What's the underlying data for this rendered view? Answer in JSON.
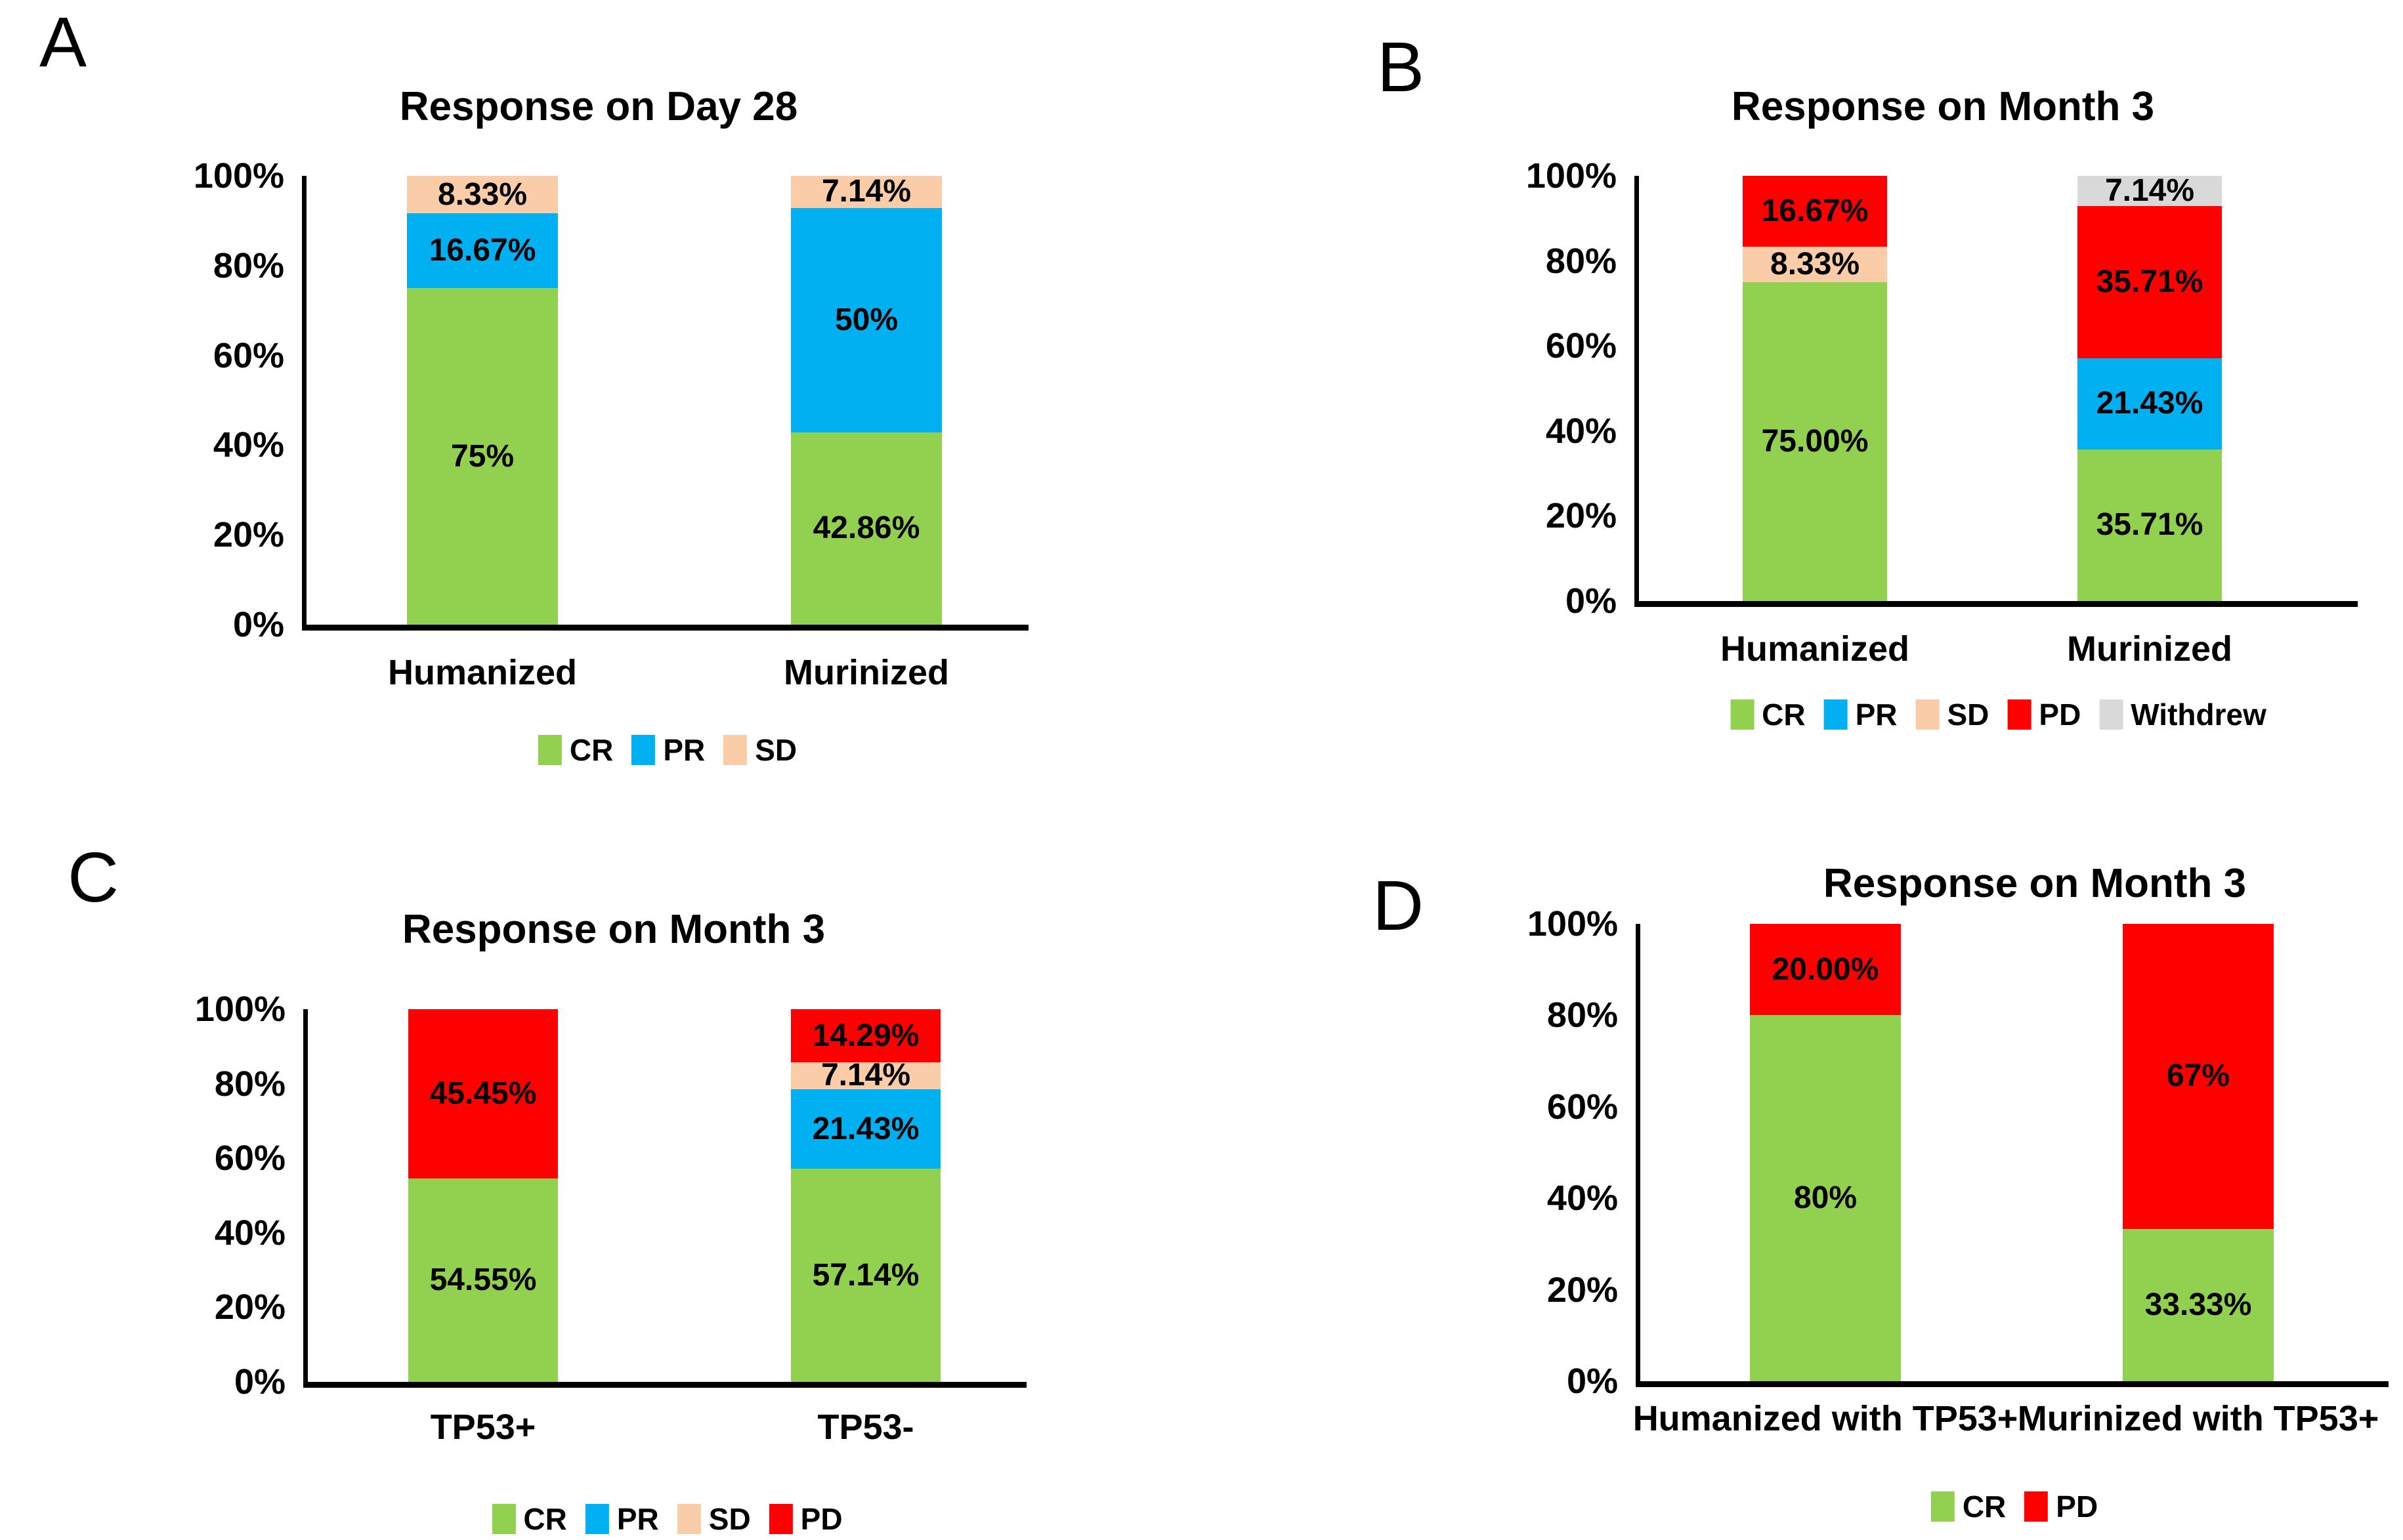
{
  "figure": {
    "background": "#FFFFFF",
    "text_color": "#000000",
    "axis_color": "#000000"
  },
  "colors": {
    "CR": "#92D050",
    "PR": "#00B0F0",
    "SD": "#FACDA8",
    "PD": "#FF0000",
    "Withdrew": "#D9D9D9"
  },
  "chart_data": [
    {
      "panel_label": "A",
      "type": "bar",
      "stacked": true,
      "title": "Response on Day 28",
      "categories": [
        "Humanized",
        "Murinized"
      ],
      "series": [
        {
          "name": "CR",
          "color": "#92D050",
          "values": [
            75,
            42.86
          ],
          "labels": [
            "75%",
            "42.86%"
          ]
        },
        {
          "name": "PR",
          "color": "#00B0F0",
          "values": [
            16.67,
            50
          ],
          "labels": [
            "16.67%",
            "50%"
          ]
        },
        {
          "name": "SD",
          "color": "#FACDA8",
          "values": [
            8.33,
            7.14
          ],
          "labels": [
            "8.33%",
            "7.14%"
          ]
        }
      ],
      "ylim": [
        0,
        100
      ],
      "yticks": [
        "100%",
        "80%",
        "60%",
        "40%",
        "20%",
        "0%"
      ],
      "grid": false,
      "legend": [
        "CR",
        "PR",
        "SD"
      ],
      "legend_position": "bottom"
    },
    {
      "panel_label": "B",
      "type": "bar",
      "stacked": true,
      "title": "Response on Month 3",
      "categories": [
        "Humanized",
        "Murinized"
      ],
      "series": [
        {
          "name": "CR",
          "color": "#92D050",
          "values": [
            75,
            35.71
          ],
          "labels": [
            "75.00%",
            "35.71%"
          ]
        },
        {
          "name": "PR",
          "color": "#00B0F0",
          "values": [
            0,
            21.43
          ],
          "labels": [
            null,
            "21.43%"
          ]
        },
        {
          "name": "SD",
          "color": "#FACDA8",
          "values": [
            8.33,
            0
          ],
          "labels": [
            "8.33%",
            null
          ]
        },
        {
          "name": "PD",
          "color": "#FF0000",
          "values": [
            16.67,
            35.71
          ],
          "labels": [
            "16.67%",
            "35.71%"
          ]
        },
        {
          "name": "Withdrew",
          "color": "#D9D9D9",
          "values": [
            0,
            7.14
          ],
          "labels": [
            null,
            "7.14%"
          ]
        }
      ],
      "ylim": [
        0,
        100
      ],
      "yticks": [
        "100%",
        "80%",
        "60%",
        "40%",
        "20%",
        "0%"
      ],
      "grid": false,
      "legend": [
        "CR",
        "PR",
        "SD",
        "PD",
        "Withdrew"
      ],
      "legend_position": "bottom"
    },
    {
      "panel_label": "C",
      "type": "bar",
      "stacked": true,
      "title": "Response on Month 3",
      "categories": [
        "TP53+",
        "TP53-"
      ],
      "series": [
        {
          "name": "CR",
          "color": "#92D050",
          "values": [
            54.55,
            57.14
          ],
          "labels": [
            "54.55%",
            "57.14%"
          ]
        },
        {
          "name": "PR",
          "color": "#00B0F0",
          "values": [
            0,
            21.43
          ],
          "labels": [
            null,
            "21.43%"
          ]
        },
        {
          "name": "SD",
          "color": "#FACDA8",
          "values": [
            0,
            7.14
          ],
          "labels": [
            null,
            "7.14%"
          ]
        },
        {
          "name": "PD",
          "color": "#FF0000",
          "values": [
            45.45,
            14.29
          ],
          "labels": [
            "45.45%",
            "14.29%"
          ]
        }
      ],
      "ylim": [
        0,
        100
      ],
      "yticks": [
        "100%",
        "80%",
        "60%",
        "40%",
        "20%",
        "0%"
      ],
      "grid": false,
      "legend": [
        "CR",
        "PR",
        "SD",
        "PD"
      ],
      "legend_position": "bottom"
    },
    {
      "panel_label": "D",
      "type": "bar",
      "stacked": true,
      "title": "Response on Month 3",
      "categories": [
        "Humanized with TP53+",
        "Murinized with TP53+"
      ],
      "series": [
        {
          "name": "CR",
          "color": "#92D050",
          "values": [
            80,
            33.33
          ],
          "labels": [
            "80%",
            "33.33%"
          ]
        },
        {
          "name": "PD",
          "color": "#FF0000",
          "values": [
            20,
            66.67
          ],
          "labels": [
            "20.00%",
            "67%"
          ]
        }
      ],
      "ylim": [
        0,
        100
      ],
      "yticks": [
        "100%",
        "80%",
        "60%",
        "40%",
        "20%",
        "0%"
      ],
      "grid": false,
      "legend": [
        "CR",
        "PD"
      ],
      "legend_position": "bottom"
    }
  ]
}
